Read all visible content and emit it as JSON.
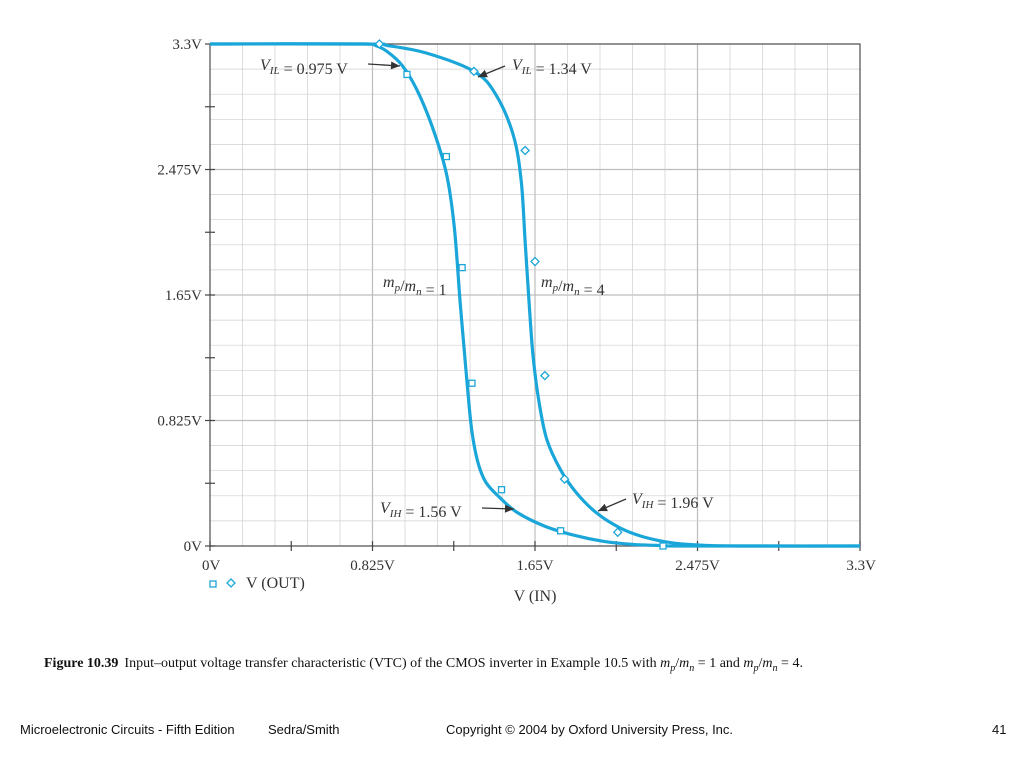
{
  "chart_data": {
    "type": "line",
    "xlabel": "V (IN)",
    "legend": {
      "label": "V (OUT)",
      "placement": "bottom-left"
    },
    "xlim": [
      0,
      3.3
    ],
    "ylim": [
      0,
      3.3
    ],
    "x_ticks": [
      "0V",
      "0.825V",
      "1.65V",
      "2.475V",
      "3.3V"
    ],
    "y_ticks": [
      "0V",
      "0.825V",
      "1.65V",
      "2.475V",
      "3.3V"
    ],
    "grid": true,
    "colors": {
      "curve": "#1aa6d8",
      "grid": "#cfcfcf",
      "axis": "#555555"
    },
    "series": [
      {
        "marker": "square",
        "x": [
          0,
          0.78,
          0.84,
          0.9,
          0.975,
          1.05,
          1.13,
          1.2,
          1.24,
          1.27,
          1.29,
          1.31,
          1.33,
          1.36,
          1.4,
          1.47,
          1.56,
          1.7,
          1.85,
          2.0,
          2.15,
          2.3,
          2.4,
          3.3
        ],
        "y": [
          3.3,
          3.3,
          3.29,
          3.25,
          3.16,
          3.0,
          2.75,
          2.45,
          2.1,
          1.6,
          1.3,
          1.0,
          0.75,
          0.55,
          0.42,
          0.32,
          0.22,
          0.13,
          0.07,
          0.03,
          0.01,
          0.003,
          0,
          0
        ],
        "markers_x": [
          1.0,
          1.2,
          1.28,
          1.33,
          1.48,
          1.78,
          2.3
        ],
        "markers_y": [
          3.1,
          2.56,
          1.83,
          1.07,
          0.37,
          0.1,
          0.0
        ]
      },
      {
        "marker": "diamond",
        "x": [
          0,
          0.8,
          0.9,
          1.1,
          1.34,
          1.45,
          1.54,
          1.58,
          1.6,
          1.62,
          1.64,
          1.67,
          1.71,
          1.78,
          1.86,
          1.96,
          2.08,
          2.2,
          2.35,
          2.5,
          2.7,
          3.3
        ],
        "y": [
          3.3,
          3.3,
          3.29,
          3.24,
          3.12,
          2.97,
          2.7,
          2.4,
          2.0,
          1.6,
          1.25,
          0.95,
          0.7,
          0.5,
          0.35,
          0.22,
          0.12,
          0.06,
          0.02,
          0.005,
          0,
          0
        ],
        "markers_x": [
          0.86,
          1.34,
          1.6,
          1.65,
          1.7,
          1.8,
          2.07
        ],
        "markers_y": [
          3.3,
          3.12,
          2.6,
          1.87,
          1.12,
          0.44,
          0.09
        ]
      }
    ],
    "annotations": [
      {
        "name": "vil-1",
        "text": "V_IL = 0.975 V"
      },
      {
        "name": "vil-4",
        "text": "V_IL = 1.34 V"
      },
      {
        "name": "label-1",
        "text": "m_p/m_n = 1"
      },
      {
        "name": "label-4",
        "text": "m_p/m_n = 4"
      },
      {
        "name": "vih-1",
        "text": "V_IH = 1.56 V"
      },
      {
        "name": "vih-4",
        "text": "V_IH = 1.96 V"
      }
    ]
  },
  "caption": {
    "label": "Figure 10.39",
    "text": "Input–output voltage transfer characteristic (VTC) of the CMOS inverter in Example 10.5 with m_p/m_n = 1 and m_p/m_n = 4."
  },
  "footer": {
    "book": "Microelectronic Circuits - Fifth Edition",
    "authors": "Sedra/Smith",
    "copyright": "Copyright © 2004 by Oxford University Press, Inc.",
    "page": "41"
  }
}
